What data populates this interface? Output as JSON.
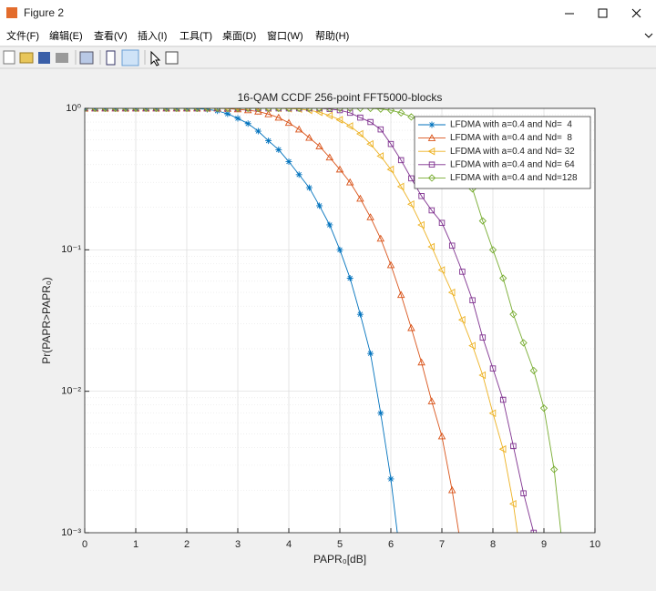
{
  "window": {
    "title": "Figure 2",
    "menu": [
      "文件(F)",
      "编辑(E)",
      "查看(V)",
      "插入(I)",
      "工具(T)",
      "桌面(D)",
      "窗口(W)",
      "帮助(H)"
    ]
  },
  "chart_data": {
    "type": "line",
    "title": "16-QAM CCDF 256-point FFT5000-blocks",
    "x_label": "PAPR₀[dB]",
    "y_label": "Pr(PAPR>PAPR₀)",
    "x": [
      0,
      0.2,
      0.4,
      0.6,
      0.8,
      1,
      1.2,
      1.4,
      1.6,
      1.8,
      2,
      2.2,
      2.4,
      2.6,
      2.8,
      3,
      3.2,
      3.4,
      3.6,
      3.8,
      4,
      4.2,
      4.4,
      4.6,
      4.8,
      5,
      5.2,
      5.4,
      5.6,
      5.8,
      6,
      6.2,
      6.4,
      6.6,
      6.8,
      7,
      7.2,
      7.4,
      7.6,
      7.8,
      8,
      8.2,
      8.4,
      8.6,
      8.8,
      9,
      9.2,
      9.4
    ],
    "series": [
      {
        "name": "LFDMA with a=0.4 and Nd=  4",
        "color": "#0072bd",
        "marker": "star",
        "values": [
          1,
          1,
          1,
          1,
          1,
          1,
          1,
          1,
          1,
          1,
          1,
          0.995,
          0.985,
          0.96,
          0.915,
          0.85,
          0.78,
          0.69,
          0.59,
          0.51,
          0.42,
          0.34,
          0.275,
          0.205,
          0.15,
          0.1,
          0.063,
          0.035,
          0.0185,
          0.007,
          0.0024,
          0.0006,
          null,
          null,
          null,
          null,
          null,
          null,
          null,
          null,
          null,
          null,
          null,
          null,
          null,
          null,
          null,
          null
        ]
      },
      {
        "name": "LFDMA with a=0.4 and Nd=  8",
        "color": "#d95319",
        "marker": "triangle-up",
        "values": [
          1,
          1,
          1,
          1,
          1,
          1,
          1,
          1,
          1,
          1,
          1,
          1,
          1,
          1,
          0.995,
          0.985,
          0.97,
          0.95,
          0.91,
          0.86,
          0.79,
          0.71,
          0.62,
          0.54,
          0.45,
          0.37,
          0.3,
          0.23,
          0.17,
          0.12,
          0.078,
          0.048,
          0.028,
          0.016,
          0.0085,
          0.0048,
          0.002,
          0.0007,
          null,
          null,
          null,
          null,
          null,
          null,
          null,
          null,
          null,
          null
        ]
      },
      {
        "name": "LFDMA with a=0.4 and Nd= 32",
        "color": "#edb120",
        "marker": "triangle-left",
        "values": [
          1,
          1,
          1,
          1,
          1,
          1,
          1,
          1,
          1,
          1,
          1,
          1,
          1,
          1,
          1,
          1,
          1,
          1,
          1,
          1,
          0.995,
          0.99,
          0.97,
          0.94,
          0.89,
          0.83,
          0.75,
          0.66,
          0.56,
          0.46,
          0.37,
          0.28,
          0.21,
          0.15,
          0.105,
          0.072,
          0.05,
          0.032,
          0.021,
          0.013,
          0.007,
          0.0039,
          0.0016,
          0.0005,
          null,
          null,
          null,
          null
        ]
      },
      {
        "name": "LFDMA with a=0.4 and Nd= 64",
        "color": "#7e2f8e",
        "marker": "square",
        "values": [
          1,
          1,
          1,
          1,
          1,
          1,
          1,
          1,
          1,
          1,
          1,
          1,
          1,
          1,
          1,
          1,
          1,
          1,
          1,
          1,
          1,
          1,
          1,
          1,
          0.99,
          0.97,
          0.93,
          0.86,
          0.8,
          0.71,
          0.56,
          0.43,
          0.32,
          0.24,
          0.19,
          0.155,
          0.107,
          0.07,
          0.044,
          0.024,
          0.0145,
          0.0087,
          0.0041,
          0.0019,
          0.001,
          0.0004,
          null,
          null
        ]
      },
      {
        "name": "LFDMA with a=0.4 and Nd=128",
        "color": "#77ac30",
        "marker": "diamond",
        "values": [
          1,
          1,
          1,
          1,
          1,
          1,
          1,
          1,
          1,
          1,
          1,
          1,
          1,
          1,
          1,
          1,
          1,
          1,
          1,
          1,
          1,
          1,
          1,
          1,
          1,
          1,
          1,
          1,
          1,
          0.99,
          0.97,
          0.93,
          0.87,
          0.8,
          0.72,
          0.63,
          0.52,
          0.41,
          0.27,
          0.16,
          0.1,
          0.063,
          0.035,
          0.022,
          0.014,
          0.0076,
          0.0028,
          0.0006
        ]
      }
    ],
    "xlim": [
      0,
      10
    ],
    "xticks": [
      0,
      1,
      2,
      3,
      4,
      5,
      6,
      7,
      8,
      9,
      10
    ],
    "ylim": [
      0.001,
      1
    ],
    "y_scale": "log",
    "yticks": [
      {
        "value": 1,
        "label": "10⁰"
      },
      {
        "value": 0.1,
        "label": "10⁻¹"
      },
      {
        "value": 0.01,
        "label": "10⁻²"
      },
      {
        "value": 0.001,
        "label": "10⁻³"
      }
    ],
    "grid": true,
    "minor_grid": true,
    "legend": "upper right"
  }
}
